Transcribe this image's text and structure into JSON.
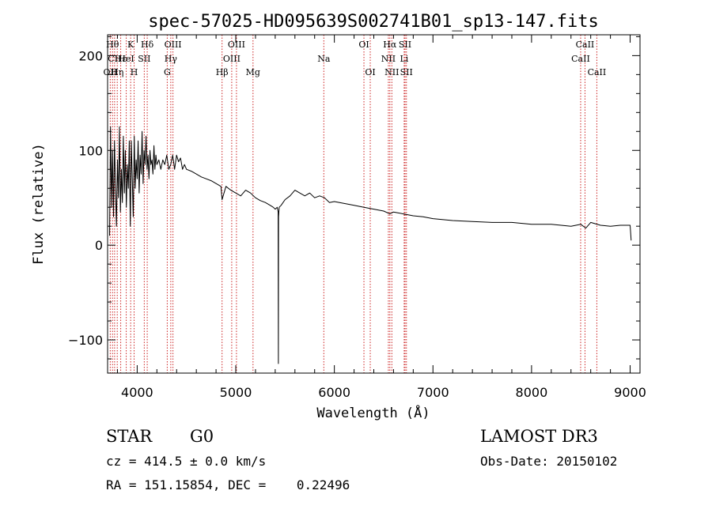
{
  "chart_data": {
    "type": "line",
    "title": "spec-57025-HD095639S002741B01_sp13-147.fits",
    "xlabel": "Wavelength (Å)",
    "ylabel": "Flux (relative)",
    "xlim": [
      3700,
      9100
    ],
    "ylim": [
      -135,
      222
    ],
    "x_ticks": [
      4000,
      5000,
      6000,
      7000,
      8000,
      9000
    ],
    "y_ticks": [
      -100,
      0,
      100,
      200
    ],
    "grid": false,
    "series": [
      {
        "color": "#000000",
        "x": [
          3720,
          3730,
          3740,
          3750,
          3760,
          3770,
          3780,
          3790,
          3800,
          3810,
          3820,
          3830,
          3840,
          3850,
          3860,
          3870,
          3880,
          3890,
          3900,
          3910,
          3920,
          3930,
          3935,
          3940,
          3950,
          3960,
          3965,
          3970,
          3980,
          3990,
          4000,
          4010,
          4020,
          4030,
          4040,
          4050,
          4060,
          4070,
          4080,
          4090,
          4100,
          4110,
          4120,
          4130,
          4140,
          4150,
          4160,
          4170,
          4180,
          4190,
          4200,
          4220,
          4240,
          4260,
          4280,
          4300,
          4320,
          4340,
          4360,
          4380,
          4400,
          4420,
          4440,
          4460,
          4480,
          4500,
          4550,
          4600,
          4650,
          4700,
          4750,
          4800,
          4850,
          4861,
          4900,
          4950,
          5000,
          5050,
          5100,
          5150,
          5200,
          5250,
          5300,
          5350,
          5380,
          5400,
          5420,
          5430,
          5432,
          5434,
          5440,
          5460,
          5500,
          5550,
          5600,
          5650,
          5700,
          5750,
          5800,
          5850,
          5900,
          5950,
          6000,
          6100,
          6200,
          6300,
          6400,
          6500,
          6563,
          6600,
          6700,
          6800,
          6900,
          7000,
          7200,
          7400,
          7600,
          7800,
          8000,
          8200,
          8400,
          8500,
          8550,
          8600,
          8700,
          8800,
          8900,
          9000,
          9010
        ],
        "y": [
          10,
          125,
          40,
          100,
          30,
          110,
          60,
          20,
          90,
          50,
          125,
          35,
          80,
          45,
          115,
          55,
          100,
          40,
          85,
          60,
          110,
          20,
          60,
          110,
          70,
          30,
          65,
          115,
          60,
          90,
          70,
          110,
          55,
          95,
          75,
          120,
          65,
          100,
          85,
          115,
          80,
          95,
          70,
          100,
          85,
          90,
          75,
          105,
          80,
          95,
          85,
          90,
          80,
          90,
          85,
          95,
          80,
          85,
          95,
          80,
          95,
          88,
          92,
          80,
          85,
          80,
          78,
          75,
          72,
          70,
          68,
          65,
          62,
          48,
          62,
          58,
          55,
          52,
          58,
          55,
          50,
          47,
          45,
          42,
          40,
          38,
          40,
          35,
          -125,
          30,
          40,
          42,
          48,
          52,
          58,
          55,
          52,
          55,
          50,
          52,
          50,
          45,
          46,
          44,
          42,
          40,
          38,
          36,
          33,
          35,
          33,
          31,
          30,
          28,
          26,
          25,
          24,
          24,
          22,
          22,
          20,
          22,
          18,
          24,
          21,
          20,
          21,
          21,
          5
        ]
      }
    ],
    "lines": [
      {
        "wavelength": 3727,
        "label": "OII",
        "row": 2
      },
      {
        "wavelength": 3750,
        "label": "Hθ",
        "row": 0
      },
      {
        "wavelength": 3771,
        "label": "CII",
        "row": 1
      },
      {
        "wavelength": 3798,
        "label": "Hη",
        "row": 2
      },
      {
        "wavelength": 3833,
        "label": "Hε",
        "row": 1
      },
      {
        "wavelength": 3889,
        "label": "HeI",
        "row": 1
      },
      {
        "wavelength": 3934,
        "label": "K",
        "row": 0
      },
      {
        "wavelength": 3969,
        "label": "H",
        "row": 2
      },
      {
        "wavelength": 4072,
        "label": "SII",
        "row": 1
      },
      {
        "wavelength": 4102,
        "label": "Hδ",
        "row": 0
      },
      {
        "wavelength": 4305,
        "label": "G",
        "row": 2
      },
      {
        "wavelength": 4341,
        "label": "Hγ",
        "row": 1
      },
      {
        "wavelength": 4363,
        "label": "OIII",
        "row": 0
      },
      {
        "wavelength": 4861,
        "label": "Hβ",
        "row": 2
      },
      {
        "wavelength": 4959,
        "label": "OIII",
        "row": 1
      },
      {
        "wavelength": 5007,
        "label": "OIII",
        "row": 0
      },
      {
        "wavelength": 5175,
        "label": "Mg",
        "row": 2
      },
      {
        "wavelength": 5893,
        "label": "Na",
        "row": 1
      },
      {
        "wavelength": 6300,
        "label": "OI",
        "row": 0
      },
      {
        "wavelength": 6364,
        "label": "OI",
        "row": 2
      },
      {
        "wavelength": 6548,
        "label": "NII",
        "row": 1
      },
      {
        "wavelength": 6563,
        "label": "Hα",
        "row": 0
      },
      {
        "wavelength": 6583,
        "label": "NII",
        "row": 2
      },
      {
        "wavelength": 6708,
        "label": "Li",
        "row": 1
      },
      {
        "wavelength": 6717,
        "label": "SII",
        "row": 0
      },
      {
        "wavelength": 6731,
        "label": "SII",
        "row": 2
      },
      {
        "wavelength": 8498,
        "label": "CaII",
        "row": 1
      },
      {
        "wavelength": 8542,
        "label": "CaII",
        "row": 0
      },
      {
        "wavelength": 8662,
        "label": "CaII",
        "row": 2
      }
    ]
  },
  "info": {
    "class_label": "STAR",
    "subclass": "G0",
    "survey": "LAMOST DR3",
    "cz_line": "cz = 414.5 ± 0.0 km/s",
    "obs_date": "Obs-Date: 20150102",
    "radec_line": "RA = 151.15854, DEC =    0.22496"
  },
  "colors": {
    "line_markers": "#cc2222",
    "spectrum": "#000000"
  }
}
